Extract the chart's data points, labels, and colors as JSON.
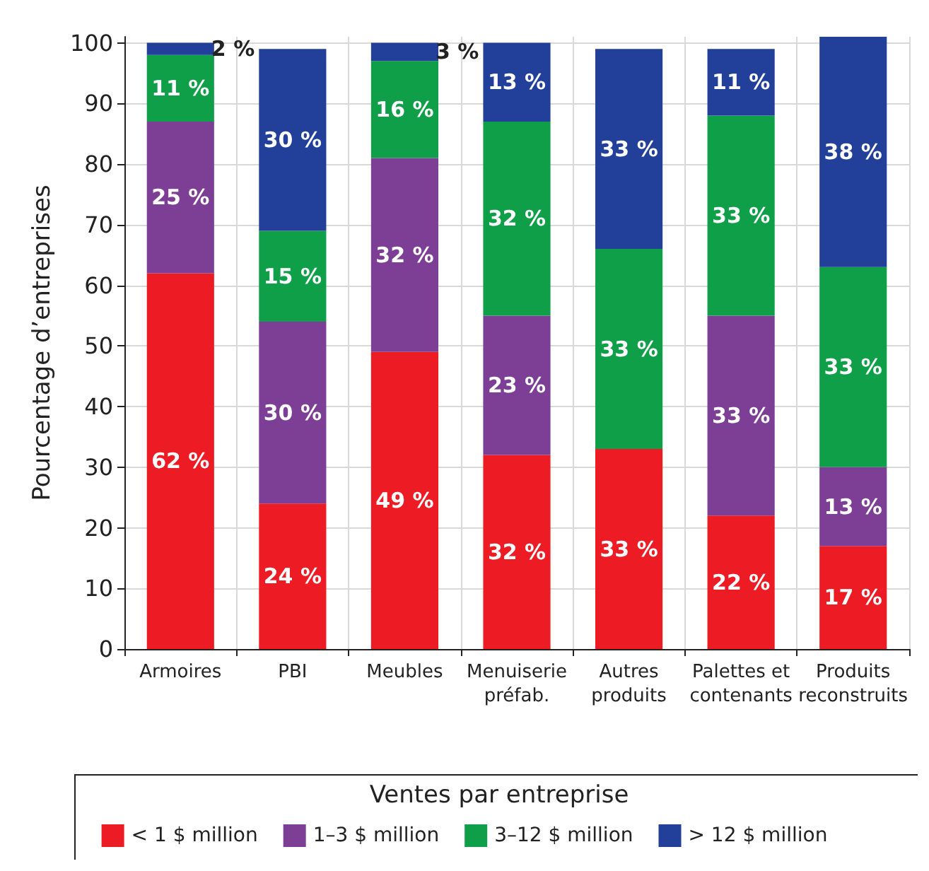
{
  "chart_data": {
    "type": "bar",
    "stacked": true,
    "ylabel": "Pourcentage d’entreprises",
    "categories": [
      "Armoires",
      "PBI",
      "Meubles",
      "Menuiserie\npréfab.",
      "Autres\nproduits",
      "Palettes et\ncontenants",
      "Produits\nreconstruits"
    ],
    "series": [
      {
        "name": "< 1 $ million",
        "color": "#ed1c24",
        "values": [
          62,
          24,
          49,
          32,
          33,
          22,
          17
        ],
        "value_labels": [
          "62 %",
          "24 %",
          "49 %",
          "32 %",
          "33 %",
          "22 %",
          "17 %"
        ]
      },
      {
        "name": "1–3 $ million",
        "color": "#7d3f96",
        "values": [
          25,
          30,
          32,
          23,
          null,
          33,
          13
        ],
        "value_labels": [
          "25 %",
          "30 %",
          "32 %",
          "23 %",
          null,
          "33 %",
          "13 %"
        ]
      },
      {
        "name": "3–12 $ million",
        "color": "#0f9f48",
        "values": [
          11,
          15,
          16,
          32,
          33,
          33,
          33
        ],
        "value_labels": [
          "11 %",
          "15 %",
          "16 %",
          "32 %",
          "33 %",
          "33 %",
          "33 %"
        ]
      },
      {
        "name": "> 12 $ million",
        "color": "#223f9a",
        "values": [
          2,
          30,
          3,
          13,
          33,
          11,
          38
        ],
        "value_labels": [
          "2 %",
          "30 %",
          "3 %",
          "13 %",
          "33 %",
          "11 %",
          "38 %"
        ]
      }
    ],
    "ylim": [
      0,
      101
    ],
    "yticks": [
      0,
      10,
      20,
      30,
      40,
      50,
      60,
      70,
      80,
      90,
      100
    ],
    "grid": true,
    "legend": "bottom",
    "legend_title": "Ventes par entreprise"
  }
}
